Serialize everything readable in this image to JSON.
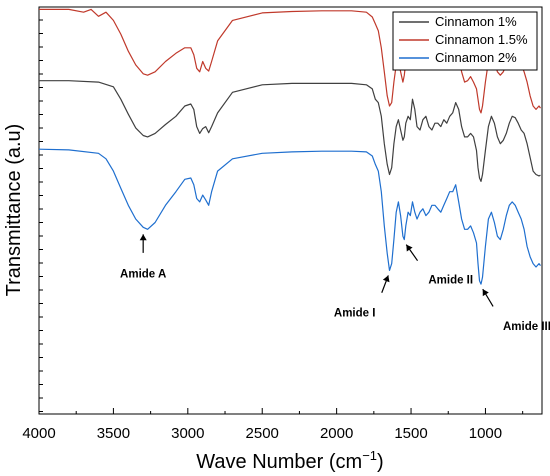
{
  "chart_data": {
    "type": "line",
    "title": "",
    "xlabel": "Wave Number (cm",
    "xlabel_sup": "−1",
    "xlabel_close": ")",
    "ylabel": "Transmittance (a.u)",
    "xlim": [
      4000,
      620
    ],
    "x_reversed": true,
    "x_ticks": [
      "4000",
      "3500",
      "3000",
      "2500",
      "2000",
      "1500",
      "1000"
    ],
    "y_tick_labels": false,
    "grid": false,
    "legend_position": "top-right",
    "series": [
      {
        "name": "Cinnamon 1%",
        "color": "#404040",
        "x": [
          4000,
          3800,
          3600,
          3500,
          3450,
          3400,
          3350,
          3300,
          3270,
          3220,
          3150,
          3080,
          3020,
          2980,
          2960,
          2940,
          2920,
          2900,
          2880,
          2860,
          2840,
          2800,
          2700,
          2500,
          2300,
          2100,
          1900,
          1800,
          1760,
          1740,
          1720,
          1700,
          1680,
          1660,
          1645,
          1630,
          1615,
          1600,
          1585,
          1570,
          1555,
          1545,
          1535,
          1520,
          1505,
          1490,
          1475,
          1460,
          1440,
          1420,
          1400,
          1380,
          1360,
          1340,
          1320,
          1300,
          1280,
          1260,
          1240,
          1220,
          1200,
          1180,
          1160,
          1140,
          1120,
          1100,
          1080,
          1060,
          1050,
          1040,
          1030,
          1020,
          1000,
          980,
          960,
          940,
          920,
          900,
          880,
          860,
          840,
          820,
          800,
          780,
          760,
          740,
          720,
          700,
          680,
          660,
          640,
          630
        ],
        "y": [
          4.72,
          4.72,
          4.7,
          4.63,
          4.45,
          4.23,
          4.03,
          3.92,
          3.9,
          3.95,
          4.08,
          4.2,
          4.35,
          4.38,
          4.3,
          4.05,
          3.95,
          4.02,
          4.05,
          3.96,
          4.05,
          4.25,
          4.55,
          4.66,
          4.68,
          4.68,
          4.68,
          4.66,
          4.6,
          4.45,
          4.4,
          4.2,
          3.8,
          3.5,
          3.35,
          3.45,
          3.8,
          4.05,
          4.15,
          4.0,
          3.85,
          3.9,
          4.1,
          4.2,
          4.15,
          4.45,
          4.3,
          4.05,
          4.0,
          4.15,
          4.2,
          4.05,
          4.0,
          4.1,
          4.1,
          4.05,
          4.15,
          4.1,
          4.2,
          4.25,
          4.4,
          4.3,
          4.05,
          3.9,
          3.9,
          3.95,
          3.9,
          3.7,
          3.45,
          3.3,
          3.25,
          3.35,
          3.7,
          4.05,
          4.2,
          4.1,
          3.9,
          3.8,
          3.85,
          3.95,
          4.1,
          4.2,
          4.18,
          4.1,
          4.0,
          3.95,
          3.8,
          3.6,
          3.4,
          3.35,
          3.33,
          3.34
        ]
      },
      {
        "name": "Cinnamon 1.5%",
        "color": "#c0392b",
        "x": [
          4000,
          3800,
          3700,
          3650,
          3600,
          3550,
          3500,
          3450,
          3400,
          3350,
          3300,
          3270,
          3220,
          3150,
          3080,
          3020,
          2980,
          2960,
          2940,
          2920,
          2900,
          2880,
          2860,
          2840,
          2800,
          2700,
          2500,
          2300,
          2100,
          1900,
          1800,
          1760,
          1740,
          1720,
          1700,
          1680,
          1660,
          1645,
          1630,
          1615,
          1600,
          1585,
          1570,
          1555,
          1545,
          1535,
          1520,
          1505,
          1490,
          1475,
          1460,
          1440,
          1420,
          1400,
          1380,
          1360,
          1340,
          1320,
          1300,
          1280,
          1260,
          1240,
          1220,
          1200,
          1180,
          1160,
          1140,
          1120,
          1100,
          1080,
          1060,
          1050,
          1040,
          1030,
          1020,
          1000,
          980,
          960,
          940,
          920,
          900,
          880,
          860,
          840,
          820,
          800,
          780,
          760,
          740,
          720,
          700,
          680,
          660,
          640,
          630
        ],
        "y": [
          5.76,
          5.76,
          5.72,
          5.76,
          5.66,
          5.72,
          5.6,
          5.4,
          5.15,
          4.95,
          4.82,
          4.8,
          4.85,
          5.0,
          5.12,
          5.2,
          5.2,
          5.1,
          4.9,
          4.85,
          5.0,
          4.9,
          4.86,
          5.0,
          5.3,
          5.6,
          5.71,
          5.73,
          5.74,
          5.74,
          5.72,
          5.65,
          5.55,
          5.45,
          5.2,
          4.85,
          4.5,
          4.35,
          4.4,
          4.7,
          4.95,
          5.0,
          4.85,
          4.7,
          4.8,
          5.0,
          5.1,
          5.05,
          5.3,
          5.1,
          4.95,
          4.9,
          5.0,
          5.05,
          4.95,
          4.88,
          5.0,
          5.0,
          4.95,
          5.05,
          5.0,
          5.1,
          5.15,
          5.25,
          5.05,
          4.85,
          4.7,
          4.72,
          4.78,
          4.7,
          4.6,
          4.45,
          4.3,
          4.25,
          4.35,
          4.7,
          5.0,
          5.1,
          5.0,
          4.85,
          4.8,
          4.85,
          4.95,
          5.1,
          5.15,
          5.12,
          5.05,
          4.95,
          4.85,
          4.7,
          4.5,
          4.35,
          4.3,
          4.35,
          4.32
        ]
      },
      {
        "name": "Cinnamon 2%",
        "color": "#1f6fcf",
        "x": [
          4000,
          3800,
          3600,
          3550,
          3500,
          3450,
          3400,
          3350,
          3300,
          3270,
          3220,
          3150,
          3080,
          3020,
          2980,
          2960,
          2940,
          2920,
          2900,
          2880,
          2860,
          2840,
          2800,
          2700,
          2500,
          2300,
          2100,
          1900,
          1800,
          1760,
          1740,
          1720,
          1700,
          1680,
          1660,
          1645,
          1630,
          1615,
          1600,
          1585,
          1570,
          1555,
          1545,
          1535,
          1520,
          1505,
          1490,
          1475,
          1460,
          1440,
          1420,
          1400,
          1380,
          1360,
          1340,
          1320,
          1300,
          1280,
          1260,
          1240,
          1220,
          1200,
          1180,
          1160,
          1140,
          1120,
          1100,
          1080,
          1060,
          1050,
          1040,
          1030,
          1020,
          1000,
          980,
          960,
          940,
          920,
          900,
          880,
          860,
          840,
          820,
          800,
          780,
          760,
          740,
          720,
          700,
          680,
          660,
          640,
          630
        ],
        "y": [
          3.72,
          3.71,
          3.66,
          3.58,
          3.4,
          3.15,
          2.9,
          2.7,
          2.58,
          2.55,
          2.65,
          2.9,
          3.1,
          3.28,
          3.3,
          3.2,
          3.0,
          2.95,
          3.05,
          2.98,
          2.9,
          3.1,
          3.4,
          3.58,
          3.66,
          3.68,
          3.69,
          3.69,
          3.68,
          3.62,
          3.5,
          3.4,
          3.1,
          2.6,
          2.2,
          1.95,
          2.05,
          2.4,
          2.8,
          2.95,
          2.75,
          2.45,
          2.4,
          2.6,
          2.8,
          2.75,
          2.95,
          2.8,
          2.7,
          2.8,
          2.85,
          2.75,
          2.8,
          2.9,
          2.9,
          2.85,
          2.8,
          2.9,
          3.0,
          3.1,
          3.1,
          3.2,
          2.95,
          2.7,
          2.55,
          2.55,
          2.6,
          2.5,
          2.35,
          2.05,
          1.8,
          1.75,
          1.85,
          2.3,
          2.7,
          2.8,
          2.65,
          2.45,
          2.4,
          2.55,
          2.75,
          2.9,
          2.95,
          2.9,
          2.8,
          2.7,
          2.55,
          2.3,
          2.15,
          2.05,
          2.0,
          2.05,
          2.02
        ]
      }
    ],
    "annotations": [
      {
        "text": "Amide A",
        "point": [
          3300,
          2.55
        ]
      },
      {
        "text": "Amide I",
        "point": [
          1645,
          1.95
        ]
      },
      {
        "text": "Amide II",
        "point": [
          1545,
          2.4
        ]
      },
      {
        "text": "Amide III",
        "point": [
          1030,
          1.75
        ]
      }
    ]
  }
}
